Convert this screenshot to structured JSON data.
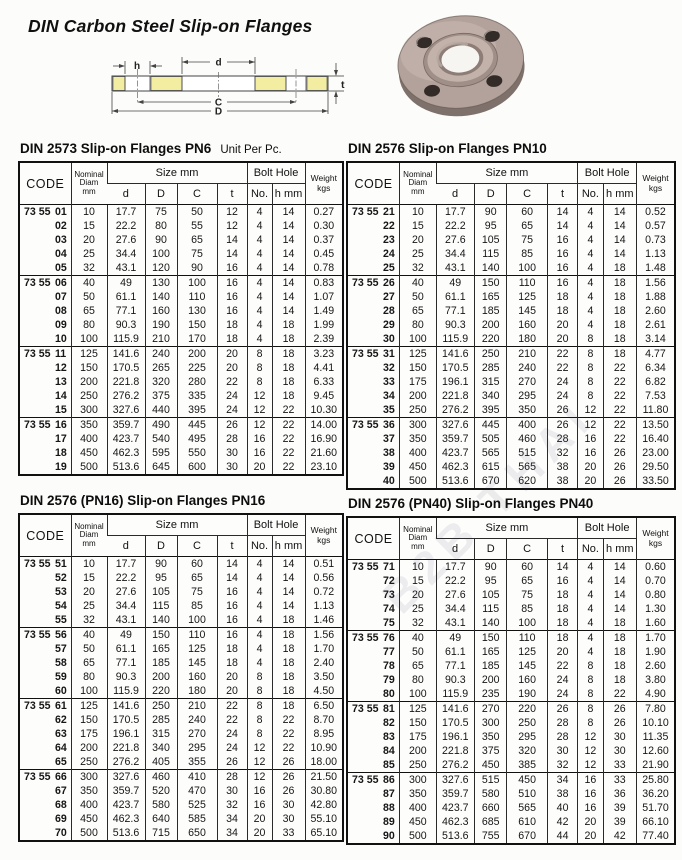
{
  "page": {
    "title": "DIN Carbon Steel Slip-on Flanges",
    "watermark": "B2B THAI"
  },
  "diagram": {
    "labels": {
      "h": "h",
      "d": "d",
      "t": "t",
      "C": "C",
      "D": "D"
    },
    "fill_color": "#f2eda1"
  },
  "table_headers": {
    "code": "CODE",
    "nominal_lines": [
      "Nominal",
      "Diam",
      "mm"
    ],
    "size_group": "Size mm",
    "size_cols": [
      "d",
      "D",
      "C",
      "t"
    ],
    "bolt_group": "Bolt Hole",
    "bolt_cols": [
      "No.",
      "h mm"
    ],
    "weight_lines": [
      "Weight",
      "kgs"
    ]
  },
  "tables": [
    {
      "id": "pn6",
      "title": "DIN 2573 Slip-on Flanges PN6",
      "subtitle": "Unit Per Pc.",
      "code_prefix": "73 55",
      "groups": [
        {
          "rows": [
            [
              "01",
              "10",
              "17.7",
              "75",
              "50",
              "12",
              "4",
              "14",
              "0.27"
            ],
            [
              "02",
              "15",
              "22.2",
              "80",
              "55",
              "12",
              "4",
              "14",
              "0.30"
            ],
            [
              "03",
              "20",
              "27.6",
              "90",
              "65",
              "14",
              "4",
              "14",
              "0.37"
            ],
            [
              "04",
              "25",
              "34.4",
              "100",
              "75",
              "14",
              "4",
              "14",
              "0.45"
            ],
            [
              "05",
              "32",
              "43.1",
              "120",
              "90",
              "16",
              "4",
              "14",
              "0.78"
            ]
          ]
        },
        {
          "rows": [
            [
              "06",
              "40",
              "49",
              "130",
              "100",
              "16",
              "4",
              "14",
              "0.83"
            ],
            [
              "07",
              "50",
              "61.1",
              "140",
              "110",
              "16",
              "4",
              "14",
              "1.07"
            ],
            [
              "08",
              "65",
              "77.1",
              "160",
              "130",
              "16",
              "4",
              "14",
              "1.49"
            ],
            [
              "09",
              "80",
              "90.3",
              "190",
              "150",
              "18",
              "4",
              "18",
              "1.99"
            ],
            [
              "10",
              "100",
              "115.9",
              "210",
              "170",
              "18",
              "4",
              "18",
              "2.39"
            ]
          ]
        },
        {
          "rows": [
            [
              "11",
              "125",
              "141.6",
              "240",
              "200",
              "20",
              "8",
              "18",
              "3.23"
            ],
            [
              "12",
              "150",
              "170.5",
              "265",
              "225",
              "20",
              "8",
              "18",
              "4.41"
            ],
            [
              "13",
              "200",
              "221.8",
              "320",
              "280",
              "22",
              "8",
              "18",
              "6.33"
            ],
            [
              "14",
              "250",
              "276.2",
              "375",
              "335",
              "24",
              "12",
              "18",
              "9.45"
            ],
            [
              "15",
              "300",
              "327.6",
              "440",
              "395",
              "24",
              "12",
              "22",
              "10.30"
            ]
          ]
        },
        {
          "rows": [
            [
              "16",
              "350",
              "359.7",
              "490",
              "445",
              "26",
              "12",
              "22",
              "14.00"
            ],
            [
              "17",
              "400",
              "423.7",
              "540",
              "495",
              "28",
              "16",
              "22",
              "16.90"
            ],
            [
              "18",
              "450",
              "462.3",
              "595",
              "550",
              "30",
              "16",
              "22",
              "21.60"
            ],
            [
              "19",
              "500",
              "513.6",
              "645",
              "600",
              "30",
              "20",
              "22",
              "23.10"
            ]
          ]
        }
      ]
    },
    {
      "id": "pn10",
      "title": "DIN 2576 Slip-on Flanges PN10",
      "subtitle": "",
      "code_prefix": "73 55",
      "groups": [
        {
          "rows": [
            [
              "21",
              "10",
              "17.7",
              "90",
              "60",
              "14",
              "4",
              "14",
              "0.52"
            ],
            [
              "22",
              "15",
              "22.2",
              "95",
              "65",
              "14",
              "4",
              "14",
              "0.57"
            ],
            [
              "23",
              "20",
              "27.6",
              "105",
              "75",
              "16",
              "4",
              "14",
              "0.73"
            ],
            [
              "24",
              "25",
              "34.4",
              "115",
              "85",
              "16",
              "4",
              "14",
              "1.13"
            ],
            [
              "25",
              "32",
              "43.1",
              "140",
              "100",
              "16",
              "4",
              "18",
              "1.48"
            ]
          ]
        },
        {
          "rows": [
            [
              "26",
              "40",
              "49",
              "150",
              "110",
              "16",
              "4",
              "18",
              "1.56"
            ],
            [
              "27",
              "50",
              "61.1",
              "165",
              "125",
              "18",
              "4",
              "18",
              "1.88"
            ],
            [
              "28",
              "65",
              "77.1",
              "185",
              "145",
              "18",
              "4",
              "18",
              "2.60"
            ],
            [
              "29",
              "80",
              "90.3",
              "200",
              "160",
              "20",
              "4",
              "18",
              "2.61"
            ],
            [
              "30",
              "100",
              "115.9",
              "220",
              "180",
              "20",
              "8",
              "18",
              "3.14"
            ]
          ]
        },
        {
          "rows": [
            [
              "31",
              "125",
              "141.6",
              "250",
              "210",
              "22",
              "8",
              "18",
              "4.77"
            ],
            [
              "32",
              "150",
              "170.5",
              "285",
              "240",
              "22",
              "8",
              "22",
              "6.34"
            ],
            [
              "33",
              "175",
              "196.1",
              "315",
              "270",
              "24",
              "8",
              "22",
              "6.82"
            ],
            [
              "34",
              "200",
              "221.8",
              "340",
              "295",
              "24",
              "8",
              "22",
              "7.53"
            ],
            [
              "35",
              "250",
              "276.2",
              "395",
              "350",
              "26",
              "12",
              "22",
              "11.80"
            ]
          ]
        },
        {
          "rows": [
            [
              "36",
              "300",
              "327.6",
              "445",
              "400",
              "26",
              "12",
              "22",
              "13.50"
            ],
            [
              "37",
              "350",
              "359.7",
              "505",
              "460",
              "28",
              "16",
              "22",
              "16.40"
            ],
            [
              "38",
              "400",
              "423.7",
              "565",
              "515",
              "32",
              "16",
              "26",
              "23.00"
            ],
            [
              "39",
              "450",
              "462.3",
              "615",
              "565",
              "38",
              "20",
              "26",
              "29.50"
            ],
            [
              "40",
              "500",
              "513.6",
              "670",
              "620",
              "38",
              "20",
              "26",
              "33.50"
            ]
          ]
        }
      ]
    },
    {
      "id": "pn16",
      "title": "DIN 2576 (PN16) Slip-on Flanges PN16",
      "subtitle": "",
      "code_prefix": "73 55",
      "groups": [
        {
          "rows": [
            [
              "51",
              "10",
              "17.7",
              "90",
              "60",
              "14",
              "4",
              "14",
              "0.51"
            ],
            [
              "52",
              "15",
              "22.2",
              "95",
              "65",
              "14",
              "4",
              "14",
              "0.56"
            ],
            [
              "53",
              "20",
              "27.6",
              "105",
              "75",
              "16",
              "4",
              "14",
              "0.72"
            ],
            [
              "54",
              "25",
              "34.4",
              "115",
              "85",
              "16",
              "4",
              "14",
              "1.13"
            ],
            [
              "55",
              "32",
              "43.1",
              "140",
              "100",
              "16",
              "4",
              "18",
              "1.46"
            ]
          ]
        },
        {
          "rows": [
            [
              "56",
              "40",
              "49",
              "150",
              "110",
              "16",
              "4",
              "18",
              "1.56"
            ],
            [
              "57",
              "50",
              "61.1",
              "165",
              "125",
              "18",
              "4",
              "18",
              "1.70"
            ],
            [
              "58",
              "65",
              "77.1",
              "185",
              "145",
              "18",
              "4",
              "18",
              "2.40"
            ],
            [
              "59",
              "80",
              "90.3",
              "200",
              "160",
              "20",
              "8",
              "18",
              "3.50"
            ],
            [
              "60",
              "100",
              "115.9",
              "220",
              "180",
              "20",
              "8",
              "18",
              "4.50"
            ]
          ]
        },
        {
          "rows": [
            [
              "61",
              "125",
              "141.6",
              "250",
              "210",
              "22",
              "8",
              "18",
              "6.50"
            ],
            [
              "62",
              "150",
              "170.5",
              "285",
              "240",
              "22",
              "8",
              "22",
              "8.70"
            ],
            [
              "63",
              "175",
              "196.1",
              "315",
              "270",
              "24",
              "8",
              "22",
              "8.95"
            ],
            [
              "64",
              "200",
              "221.8",
              "340",
              "295",
              "24",
              "12",
              "22",
              "10.90"
            ],
            [
              "65",
              "250",
              "276.2",
              "405",
              "355",
              "26",
              "12",
              "26",
              "18.00"
            ]
          ]
        },
        {
          "rows": [
            [
              "66",
              "300",
              "327.6",
              "460",
              "410",
              "28",
              "12",
              "26",
              "21.50"
            ],
            [
              "67",
              "350",
              "359.7",
              "520",
              "470",
              "30",
              "16",
              "26",
              "30.80"
            ],
            [
              "68",
              "400",
              "423.7",
              "580",
              "525",
              "32",
              "16",
              "30",
              "42.80"
            ],
            [
              "69",
              "450",
              "462.3",
              "640",
              "585",
              "34",
              "20",
              "30",
              "55.10"
            ],
            [
              "70",
              "500",
              "513.6",
              "715",
              "650",
              "34",
              "20",
              "33",
              "65.10"
            ]
          ]
        }
      ]
    },
    {
      "id": "pn40",
      "title": "DIN 2576 (PN40) Slip-on Flanges PN40",
      "subtitle": "",
      "code_prefix": "73 55",
      "groups": [
        {
          "rows": [
            [
              "71",
              "10",
              "17.7",
              "90",
              "60",
              "14",
              "4",
              "14",
              "0.60"
            ],
            [
              "72",
              "15",
              "22.2",
              "95",
              "65",
              "16",
              "4",
              "14",
              "0.70"
            ],
            [
              "73",
              "20",
              "27.6",
              "105",
              "75",
              "18",
              "4",
              "14",
              "0.80"
            ],
            [
              "74",
              "25",
              "34.4",
              "115",
              "85",
              "18",
              "4",
              "14",
              "1.30"
            ],
            [
              "75",
              "32",
              "43.1",
              "140",
              "100",
              "18",
              "4",
              "18",
              "1.60"
            ]
          ]
        },
        {
          "rows": [
            [
              "76",
              "40",
              "49",
              "150",
              "110",
              "18",
              "4",
              "18",
              "1.70"
            ],
            [
              "77",
              "50",
              "61.1",
              "165",
              "125",
              "20",
              "4",
              "18",
              "1.90"
            ],
            [
              "78",
              "65",
              "77.1",
              "185",
              "145",
              "22",
              "8",
              "18",
              "2.60"
            ],
            [
              "79",
              "80",
              "90.3",
              "200",
              "160",
              "24",
              "8",
              "18",
              "3.80"
            ],
            [
              "80",
              "100",
              "115.9",
              "235",
              "190",
              "24",
              "8",
              "22",
              "4.90"
            ]
          ]
        },
        {
          "rows": [
            [
              "81",
              "125",
              "141.6",
              "270",
              "220",
              "26",
              "8",
              "26",
              "7.80"
            ],
            [
              "82",
              "150",
              "170.5",
              "300",
              "250",
              "28",
              "8",
              "26",
              "10.10"
            ],
            [
              "83",
              "175",
              "196.1",
              "350",
              "295",
              "28",
              "12",
              "30",
              "11.35"
            ],
            [
              "84",
              "200",
              "221.8",
              "375",
              "320",
              "30",
              "12",
              "30",
              "12.60"
            ],
            [
              "85",
              "250",
              "276.2",
              "450",
              "385",
              "32",
              "12",
              "33",
              "21.90"
            ]
          ]
        },
        {
          "rows": [
            [
              "86",
              "300",
              "327.6",
              "515",
              "450",
              "34",
              "16",
              "33",
              "25.80"
            ],
            [
              "87",
              "350",
              "359.7",
              "580",
              "510",
              "38",
              "16",
              "36",
              "36.20"
            ],
            [
              "88",
              "400",
              "423.7",
              "660",
              "565",
              "40",
              "16",
              "39",
              "51.70"
            ],
            [
              "89",
              "450",
              "462.3",
              "685",
              "610",
              "42",
              "20",
              "39",
              "66.10"
            ],
            [
              "90",
              "500",
              "513.6",
              "755",
              "670",
              "44",
              "20",
              "42",
              "77.40"
            ]
          ]
        }
      ]
    }
  ]
}
